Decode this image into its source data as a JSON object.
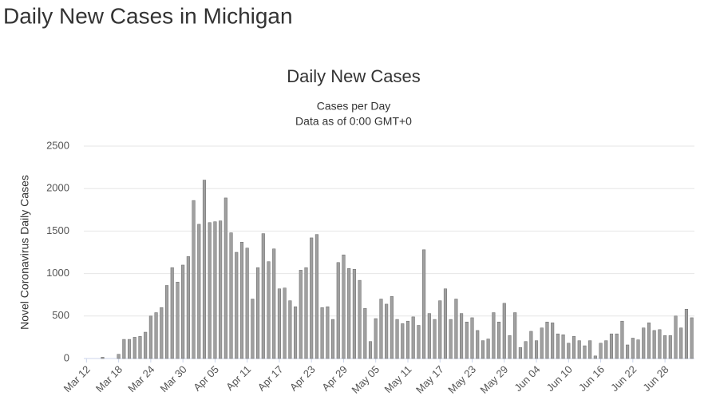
{
  "page_title": "Daily New Cases in Michigan",
  "chart_data": {
    "type": "bar",
    "title": "Daily New Cases",
    "subtitle": [
      "Cases per Day",
      "Data as of 0:00 GMT+0"
    ],
    "y_label": "Novel Coronavirus Daily Cases",
    "categories": [
      "Mar 12",
      null,
      null,
      null,
      null,
      null,
      "Mar 18",
      null,
      null,
      null,
      null,
      null,
      "Mar 24",
      null,
      null,
      null,
      null,
      null,
      "Mar 30",
      null,
      null,
      null,
      null,
      null,
      "Apr 05",
      null,
      null,
      null,
      null,
      null,
      "Apr 11",
      null,
      null,
      null,
      null,
      null,
      "Apr 17",
      null,
      null,
      null,
      null,
      null,
      "Apr 23",
      null,
      null,
      null,
      null,
      null,
      "Apr 29",
      null,
      null,
      null,
      null,
      null,
      "May 05",
      null,
      null,
      null,
      null,
      null,
      "May 11",
      null,
      null,
      null,
      null,
      null,
      "May 17",
      null,
      null,
      null,
      null,
      null,
      "May 23",
      null,
      null,
      null,
      null,
      null,
      "May 29",
      null,
      null,
      null,
      null,
      null,
      "Jun 04",
      null,
      null,
      null,
      null,
      null,
      "Jun 10",
      null,
      null,
      null,
      null,
      null,
      "Jun 16",
      null,
      null,
      null,
      null,
      null,
      "Jun 22",
      null,
      null,
      null,
      null,
      null,
      "Jun 28",
      null,
      null,
      null,
      null,
      null
    ],
    "values": [
      0,
      0,
      0,
      15,
      0,
      0,
      50,
      225,
      225,
      250,
      260,
      310,
      500,
      540,
      600,
      860,
      1070,
      900,
      1100,
      1200,
      1860,
      1580,
      2100,
      1600,
      1610,
      1620,
      1890,
      1480,
      1250,
      1370,
      1300,
      700,
      1070,
      1470,
      1140,
      1290,
      820,
      830,
      680,
      610,
      1040,
      1070,
      1420,
      1460,
      600,
      610,
      460,
      1130,
      1220,
      1060,
      1050,
      920,
      590,
      200,
      470,
      700,
      640,
      730,
      460,
      410,
      440,
      490,
      390,
      1280,
      530,
      460,
      680,
      820,
      460,
      700,
      530,
      430,
      480,
      330,
      210,
      230,
      540,
      430,
      650,
      270,
      540,
      130,
      200,
      320,
      210,
      360,
      430,
      420,
      290,
      280,
      180,
      260,
      210,
      150,
      210,
      30,
      180,
      210,
      290,
      290,
      440,
      160,
      240,
      220,
      360,
      420,
      330,
      340,
      270,
      270,
      500,
      360,
      580,
      480
    ],
    "color": "#a0a0a0",
    "ylim": [
      0,
      2500
    ],
    "yticks": [
      0,
      500,
      1000,
      1500,
      2000,
      2500
    ],
    "grid": true
  }
}
